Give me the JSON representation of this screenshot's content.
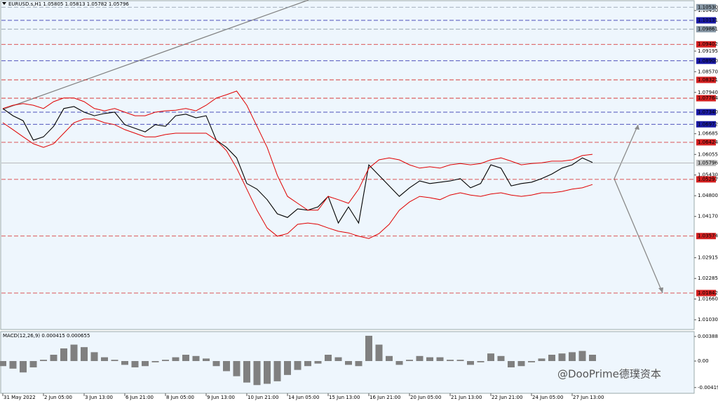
{
  "chart_data": [
    {
      "type": "line",
      "title": "EURUSD.s,H1  1.05805 1.05813 1.05782 1.05796",
      "categories": [
        "31 May 2022",
        null,
        null,
        null,
        "2 Jun 05:00",
        null,
        null,
        null,
        "3 Jun 13:00",
        null,
        null,
        null,
        "6 Jun 21:00",
        null,
        null,
        null,
        "8 Jun 05:00",
        null,
        null,
        null,
        "9 Jun 13:00",
        null,
        null,
        null,
        "10 Jun 21:00",
        null,
        null,
        null,
        "14 Jun 05:00",
        null,
        null,
        null,
        "15 Jun 13:00",
        null,
        null,
        null,
        "16 Jun 21:00",
        null,
        null,
        null,
        "20 Jun 05:00",
        null,
        null,
        null,
        "21 Jun 13:00",
        null,
        null,
        null,
        "22 Jun 21:00",
        null,
        null,
        null,
        "24 Jun 05:00",
        null,
        null,
        null,
        "27 Jun 13:00",
        null,
        null,
        null
      ],
      "series": [
        {
          "color": "#000000",
          "values": [
            1.0745,
            1.0723,
            1.0708,
            1.0649,
            1.0659,
            1.0691,
            1.0745,
            1.0751,
            1.0734,
            1.0723,
            1.073,
            1.0734,
            1.0696,
            1.0685,
            1.0674,
            1.0696,
            1.0691,
            1.0723,
            1.0728,
            1.0717,
            1.0723,
            1.0649,
            1.0627,
            1.0595,
            1.0517,
            1.05,
            1.0468,
            1.0425,
            1.0414,
            1.044,
            1.0436,
            1.0446,
            1.0478,
            1.0397,
            1.0446,
            1.0397,
            1.0574,
            1.0542,
            1.051,
            1.0478,
            1.0504,
            1.0525,
            1.0517,
            1.0521,
            1.0525,
            1.0532,
            1.0504,
            1.0517,
            1.0574,
            1.0564,
            1.051,
            1.0517,
            1.0521,
            1.0532,
            1.0546,
            1.0564,
            1.0574,
            1.0595,
            1.0581,
            null
          ]
        },
        {
          "color": "#e00000",
          "values": [
            1.0745,
            1.0755,
            1.076,
            1.0755,
            1.0745,
            1.0766,
            1.0777,
            1.0777,
            1.0766,
            1.0745,
            1.0738,
            1.0745,
            1.0734,
            1.0723,
            1.0723,
            1.0734,
            1.0738,
            1.074,
            1.0745,
            1.0738,
            1.0755,
            1.0777,
            1.0787,
            1.0798,
            1.0755,
            1.0691,
            1.0627,
            1.0542,
            1.0478,
            1.0457,
            1.0436,
            1.0436,
            1.0478,
            1.0468,
            1.0457,
            1.05,
            1.0564,
            1.0589,
            1.0595,
            1.0589,
            1.0574,
            1.0564,
            1.0568,
            1.0564,
            1.0574,
            1.0578,
            1.0574,
            1.0578,
            1.0589,
            1.0595,
            1.0585,
            1.0574,
            1.0578,
            1.058,
            1.0585,
            1.0585,
            1.0589,
            1.0602,
            1.0606,
            null
          ]
        },
        {
          "color": "#e00000",
          "values": [
            1.0702,
            1.0681,
            1.0659,
            1.0638,
            1.0627,
            1.0638,
            1.067,
            1.0702,
            1.0713,
            1.0713,
            1.0702,
            1.0696,
            1.0681,
            1.067,
            1.0659,
            1.0659,
            1.0666,
            1.067,
            1.067,
            1.067,
            1.067,
            1.0649,
            1.0617,
            1.0564,
            1.05,
            1.0436,
            1.0382,
            1.0357,
            1.0365,
            1.0393,
            1.0397,
            1.0393,
            1.0382,
            1.0372,
            1.0367,
            1.0357,
            1.035,
            1.0365,
            1.0393,
            1.0436,
            1.0461,
            1.0478,
            1.0474,
            1.0468,
            1.0482,
            1.0489,
            1.0482,
            1.0478,
            1.0485,
            1.0489,
            1.0482,
            1.0478,
            1.0482,
            1.0489,
            1.0489,
            1.0493,
            1.05,
            1.0504,
            1.0514,
            null
          ]
        }
      ],
      "ylim": [
        1.00734,
        1.10749
      ],
      "yticks": [
        {
          "value": 1.1043,
          "label": "1.10430"
        },
        1.09195,
        {
          "value": 1.0857,
          "label": "1.08570"
        },
        {
          "value": 1.0794,
          "label": "1.07940"
        },
        1.06685,
        1.06055,
        {
          "value": 1.0543,
          "label": "1.05430"
        },
        {
          "value": 1.048,
          "label": "1.04800"
        },
        {
          "value": 1.0417,
          "label": "1.04170"
        },
        1.02915,
        1.02285,
        {
          "value": 1.0166,
          "label": "1.01660"
        },
        {
          "value": 1.0103,
          "label": "1.01030"
        }
      ],
      "levels": [
        {
          "value": 1.1053,
          "label": "1.10530",
          "color": "#8a9aa8"
        },
        {
          "value": 1.10131,
          "label": "1.10131",
          "color": "#1a1aa6"
        },
        {
          "value": 1.09861,
          "label": "1.09861",
          "color": "#8a9aa8"
        },
        {
          "value": 1.09402,
          "label": "1.09402",
          "color": "#d42020"
        },
        {
          "value": 1.089,
          "label": "1.08900",
          "color": "#1a1aa6"
        },
        {
          "value": 1.08321,
          "label": "1.08321",
          "color": "#d42020"
        },
        {
          "value": 1.07764,
          "label": "1.07764",
          "color": "#d42020"
        },
        {
          "value": 1.0734,
          "label": "1.07340",
          "color": "#1a1aa6"
        },
        {
          "value": 1.06972,
          "label": "1.06972",
          "color": "#1a1aa6"
        },
        {
          "value": 1.06424,
          "label": "1.06424",
          "color": "#d42020"
        },
        {
          "value": 1.05796,
          "label": "1.05796",
          "color": "#c0c0c0"
        },
        {
          "value": 1.05297,
          "label": "1.05297",
          "color": "#d42020"
        },
        {
          "value": 1.03574,
          "label": "1.03574",
          "color": "#d42020"
        },
        {
          "value": 1.01842,
          "label": "1.01842",
          "color": "#d42020"
        }
      ]
    },
    {
      "type": "bar",
      "title": "MACD(12,26,9) 0.000415 0.000655",
      "color": "#808080",
      "values": [
        -0.0008,
        -0.0012,
        -0.0018,
        -0.001,
        0.0002,
        0.001,
        0.002,
        0.0026,
        0.0022,
        0.0014,
        0.0006,
        0.0002,
        -0.0006,
        -0.001,
        -0.0008,
        -0.0002,
        0.0002,
        0.0006,
        0.001,
        0.0008,
        0.0004,
        -0.0008,
        -0.0016,
        -0.0024,
        -0.0034,
        -0.0038,
        -0.0036,
        -0.0032,
        -0.0022,
        -0.0014,
        -0.0008,
        -0.0004,
        0.001,
        0.0006,
        -0.0006,
        -0.0008,
        0.004,
        0.0026,
        0.0008,
        -0.0006,
        0.0002,
        0.0008,
        0.0006,
        0.0006,
        0.0002,
        0.0002,
        -0.0006,
        -0.0002,
        0.0012,
        0.0008,
        -0.001,
        -0.0008,
        -0.0002,
        0.0004,
        0.001,
        0.0012,
        0.0014,
        0.0016,
        0.001,
        null
      ],
      "ylim": [
        -0.0051,
        0.00466
      ],
      "yticks": [
        0.003884,
        {
          "value": 0,
          "label": "0.00"
        },
        -0.004191
      ]
    }
  ],
  "watermark": "@DooPrime德璞资本"
}
